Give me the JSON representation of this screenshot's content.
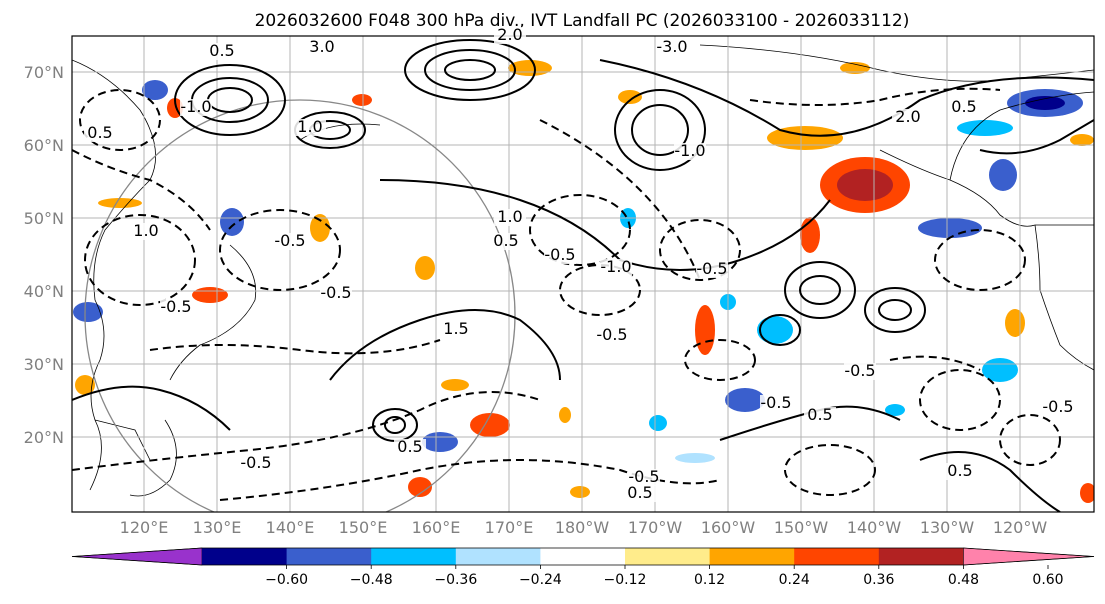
{
  "title": "2026032600 F048 300 hPa div., IVT Landfall PC (2026033100 - 2026033112)",
  "map": {
    "lat_labels": [
      "70°N",
      "60°N",
      "50°N",
      "40°N",
      "30°N",
      "20°N"
    ],
    "lon_labels": [
      "120°E",
      "130°E",
      "140°E",
      "150°E",
      "160°E",
      "170°E",
      "180°W",
      "170°W",
      "160°W",
      "150°W",
      "140°W",
      "130°W",
      "120°W"
    ]
  },
  "contour_labels": [
    "0.5",
    "3.0",
    "2.0",
    "-3.0",
    "1.0",
    "-1.0",
    "0.5",
    "-0.5",
    "-0.5",
    "-1.0",
    "-0.5",
    "-0.5",
    "0.5",
    "-0.5",
    "-0.5",
    "0.5",
    "-0.5",
    "-0.5",
    "0.5",
    "-0.5",
    "1.0",
    "-0.5",
    "2.0",
    "0.5",
    "-0.5",
    "1.5",
    "1.0",
    "0.5",
    "-1.0",
    "0.5"
  ],
  "colorbar": {
    "colors": [
      "#9932cc",
      "#00008b",
      "#3a5fcd",
      "#00bfff",
      "#b0e2ff",
      "#ffffff",
      "#ffec8b",
      "#ffa500",
      "#ff4500",
      "#b22222",
      "#ff82ab"
    ],
    "tick_labels": [
      "−0.60",
      "−0.48",
      "−0.36",
      "−0.24",
      "−0.12",
      "0.12",
      "0.24",
      "0.36",
      "0.48",
      "0.60"
    ]
  }
}
